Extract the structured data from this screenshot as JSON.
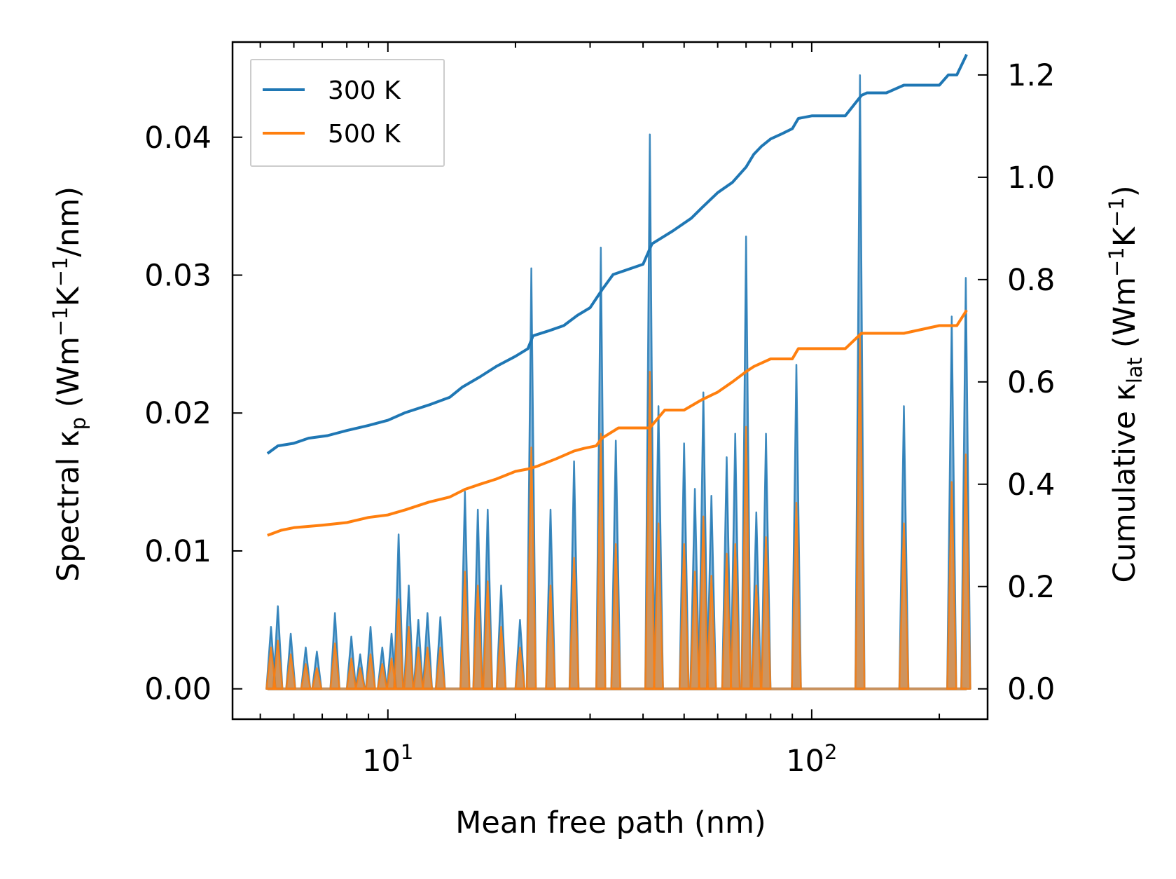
{
  "chart_data": {
    "type": "line",
    "xlabel": "Mean free path (nm)",
    "xscale": "log",
    "xlim": [
      4.3,
      260
    ],
    "x_ticks": [
      {
        "value": 10,
        "base": "10",
        "exp": "1"
      },
      {
        "value": 100,
        "base": "10",
        "exp": "2"
      }
    ],
    "left_axis": {
      "label": {
        "prefix": "Spectral κ",
        "sub": "p",
        "mid": " (Wm",
        "sup1": "−1",
        "k": "K",
        "sup2": "−1",
        "suffix": "/nm)"
      },
      "ylim": [
        -0.0022,
        0.0469
      ],
      "ticks": [
        "0.00",
        "0.01",
        "0.02",
        "0.03",
        "0.04"
      ],
      "tick_values": [
        0,
        0.01,
        0.02,
        0.03,
        0.04
      ]
    },
    "right_axis": {
      "label": {
        "prefix": "Cumulative κ",
        "sub": "lat",
        "mid": " (Wm",
        "sup1": "−1",
        "k": "K",
        "sup2": "−1",
        "suffix": ")"
      },
      "ylim": [
        -0.0593,
        1.2643
      ],
      "ticks": [
        "0.0",
        "0.2",
        "0.4",
        "0.6",
        "0.8",
        "1.0",
        "1.2"
      ],
      "tick_values": [
        0,
        0.2,
        0.4,
        0.6,
        0.8,
        1.0,
        1.2
      ]
    },
    "series": [
      {
        "name": "300 K",
        "color": "#1f77b4",
        "cumulative": {
          "x": [
            5.2,
            5.5,
            6.0,
            6.5,
            7.2,
            8.0,
            9.0,
            10.0,
            11.0,
            12.5,
            14.0,
            15.0,
            16.5,
            18.0,
            20.0,
            21.4,
            22.0,
            24.0,
            26.0,
            28.0,
            30.0,
            32.0,
            34.0,
            40.0,
            42.0,
            47.0,
            52.0,
            55.0,
            60.0,
            65.0,
            70.0,
            73.0,
            76.0,
            80.0,
            85.0,
            90.0,
            93.0,
            100.0,
            120.0,
            131.0,
            135.0,
            150.0,
            165.0,
            180.0,
            200.0,
            210.0,
            220.0,
            232.0
          ],
          "y": [
            0.46,
            0.475,
            0.48,
            0.49,
            0.495,
            0.505,
            0.515,
            0.525,
            0.54,
            0.555,
            0.57,
            0.59,
            0.61,
            0.63,
            0.65,
            0.665,
            0.69,
            0.7,
            0.71,
            0.73,
            0.745,
            0.78,
            0.81,
            0.83,
            0.87,
            0.895,
            0.92,
            0.94,
            0.97,
            0.99,
            1.02,
            1.045,
            1.06,
            1.075,
            1.085,
            1.095,
            1.115,
            1.12,
            1.12,
            1.16,
            1.165,
            1.165,
            1.18,
            1.18,
            1.18,
            1.2,
            1.2,
            1.24
          ]
        },
        "spikes": [
          {
            "x": 5.3,
            "y": 0.0045
          },
          {
            "x": 5.5,
            "y": 0.006
          },
          {
            "x": 5.9,
            "y": 0.004
          },
          {
            "x": 6.4,
            "y": 0.003
          },
          {
            "x": 6.8,
            "y": 0.0027
          },
          {
            "x": 7.5,
            "y": 0.0055
          },
          {
            "x": 8.2,
            "y": 0.0038
          },
          {
            "x": 8.6,
            "y": 0.0025
          },
          {
            "x": 9.1,
            "y": 0.0045
          },
          {
            "x": 9.7,
            "y": 0.003
          },
          {
            "x": 10.2,
            "y": 0.004
          },
          {
            "x": 10.6,
            "y": 0.0112
          },
          {
            "x": 11.2,
            "y": 0.0075
          },
          {
            "x": 11.8,
            "y": 0.005
          },
          {
            "x": 12.4,
            "y": 0.0055
          },
          {
            "x": 13.3,
            "y": 0.0052
          },
          {
            "x": 15.2,
            "y": 0.0143
          },
          {
            "x": 16.3,
            "y": 0.013
          },
          {
            "x": 17.2,
            "y": 0.013
          },
          {
            "x": 18.5,
            "y": 0.0075
          },
          {
            "x": 20.5,
            "y": 0.005
          },
          {
            "x": 21.8,
            "y": 0.0305
          },
          {
            "x": 24.2,
            "y": 0.013
          },
          {
            "x": 27.5,
            "y": 0.0165
          },
          {
            "x": 31.8,
            "y": 0.032
          },
          {
            "x": 34.5,
            "y": 0.018
          },
          {
            "x": 41.5,
            "y": 0.0402
          },
          {
            "x": 43.5,
            "y": 0.0205
          },
          {
            "x": 50.0,
            "y": 0.0178
          },
          {
            "x": 53.0,
            "y": 0.0145
          },
          {
            "x": 55.5,
            "y": 0.0215
          },
          {
            "x": 58.0,
            "y": 0.014
          },
          {
            "x": 63.0,
            "y": 0.0168
          },
          {
            "x": 66.0,
            "y": 0.0185
          },
          {
            "x": 70.0,
            "y": 0.0328
          },
          {
            "x": 74.0,
            "y": 0.0128
          },
          {
            "x": 78.0,
            "y": 0.0185
          },
          {
            "x": 92.0,
            "y": 0.0235
          },
          {
            "x": 130.0,
            "y": 0.0445
          },
          {
            "x": 165.0,
            "y": 0.0205
          },
          {
            "x": 214.0,
            "y": 0.027
          },
          {
            "x": 231.0,
            "y": 0.0298
          }
        ]
      },
      {
        "name": "500 K",
        "color": "#ff7f0e",
        "cumulative": {
          "x": [
            5.2,
            5.6,
            6.0,
            7.0,
            8.0,
            9.0,
            10.0,
            11.0,
            12.5,
            14.0,
            15.2,
            16.5,
            18.0,
            20.0,
            21.5,
            22.5,
            25.0,
            27.5,
            29.0,
            31.0,
            32.0,
            35.0,
            40.0,
            41.5,
            45.0,
            50.0,
            55.0,
            60.0,
            65.0,
            70.0,
            73.0,
            80.0,
            90.0,
            93.0,
            100.0,
            120.0,
            131.0,
            150.0,
            165.0,
            200.0,
            220.0,
            232.0
          ],
          "y": [
            0.3,
            0.31,
            0.315,
            0.32,
            0.325,
            0.335,
            0.34,
            0.35,
            0.365,
            0.375,
            0.39,
            0.4,
            0.41,
            0.425,
            0.43,
            0.435,
            0.45,
            0.465,
            0.47,
            0.475,
            0.49,
            0.51,
            0.51,
            0.51,
            0.545,
            0.545,
            0.565,
            0.58,
            0.6,
            0.62,
            0.63,
            0.645,
            0.645,
            0.665,
            0.665,
            0.665,
            0.695,
            0.695,
            0.695,
            0.71,
            0.71,
            0.74
          ]
        },
        "spikes": [
          {
            "x": 5.3,
            "y": 0.003
          },
          {
            "x": 5.5,
            "y": 0.0035
          },
          {
            "x": 5.9,
            "y": 0.0025
          },
          {
            "x": 6.4,
            "y": 0.0018
          },
          {
            "x": 6.8,
            "y": 0.0015
          },
          {
            "x": 7.5,
            "y": 0.0033
          },
          {
            "x": 8.2,
            "y": 0.0022
          },
          {
            "x": 8.6,
            "y": 0.0015
          },
          {
            "x": 9.1,
            "y": 0.0025
          },
          {
            "x": 9.7,
            "y": 0.0018
          },
          {
            "x": 10.2,
            "y": 0.0022
          },
          {
            "x": 10.6,
            "y": 0.0065
          },
          {
            "x": 11.2,
            "y": 0.0045
          },
          {
            "x": 11.8,
            "y": 0.003
          },
          {
            "x": 12.4,
            "y": 0.003
          },
          {
            "x": 13.3,
            "y": 0.003
          },
          {
            "x": 15.2,
            "y": 0.0085
          },
          {
            "x": 16.3,
            "y": 0.0075
          },
          {
            "x": 17.2,
            "y": 0.0078
          },
          {
            "x": 18.5,
            "y": 0.0045
          },
          {
            "x": 20.5,
            "y": 0.003
          },
          {
            "x": 21.8,
            "y": 0.0175
          },
          {
            "x": 24.2,
            "y": 0.0075
          },
          {
            "x": 27.5,
            "y": 0.0095
          },
          {
            "x": 31.8,
            "y": 0.0185
          },
          {
            "x": 34.5,
            "y": 0.0105
          },
          {
            "x": 41.5,
            "y": 0.023
          },
          {
            "x": 43.5,
            "y": 0.012
          },
          {
            "x": 50.0,
            "y": 0.0105
          },
          {
            "x": 53.0,
            "y": 0.0085
          },
          {
            "x": 55.5,
            "y": 0.0125
          },
          {
            "x": 58.0,
            "y": 0.0082
          },
          {
            "x": 63.0,
            "y": 0.0098
          },
          {
            "x": 66.0,
            "y": 0.0105
          },
          {
            "x": 70.0,
            "y": 0.019
          },
          {
            "x": 74.0,
            "y": 0.0075
          },
          {
            "x": 78.0,
            "y": 0.011
          },
          {
            "x": 92.0,
            "y": 0.0135
          },
          {
            "x": 130.0,
            "y": 0.0255
          },
          {
            "x": 165.0,
            "y": 0.012
          },
          {
            "x": 214.0,
            "y": 0.015
          },
          {
            "x": 231.0,
            "y": 0.017
          }
        ]
      }
    ],
    "legend": {
      "position": "top-left",
      "entries": [
        "300 K",
        "500 K"
      ]
    }
  }
}
